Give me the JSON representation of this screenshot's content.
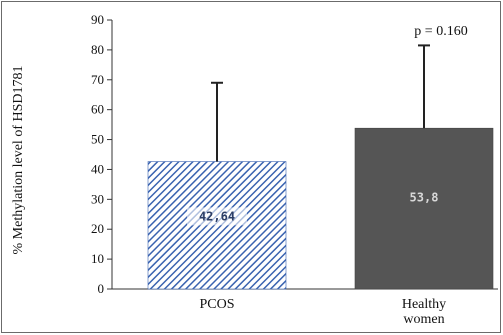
{
  "chart_data": {
    "type": "bar",
    "categories": [
      "PCOS",
      "Healthy women"
    ],
    "category_lines": [
      [
        "PCOS"
      ],
      [
        "Healthy",
        "women"
      ]
    ],
    "values": [
      42.64,
      53.8
    ],
    "value_labels": [
      "42,64",
      "53,8"
    ],
    "error_upper": [
      69,
      81.5
    ],
    "ylabel": "% Methylation level of HSD1781",
    "ylim": [
      0,
      90
    ],
    "yticks": [
      0,
      10,
      20,
      30,
      40,
      50,
      60,
      70,
      80,
      90
    ],
    "annotation": "p = 0.160",
    "grid": false,
    "legend": "none",
    "bar_styles": [
      {
        "pattern": "diagonal-hatch",
        "fill": "#ffffff",
        "stroke": "#3a63b0",
        "label_color": "#2c3e66"
      },
      {
        "pattern": "solid",
        "fill": "#555555",
        "stroke": "#444444",
        "label_color": "#d8d8d8"
      }
    ],
    "axis_color": "#333333",
    "errorbar_color": "#222222"
  }
}
